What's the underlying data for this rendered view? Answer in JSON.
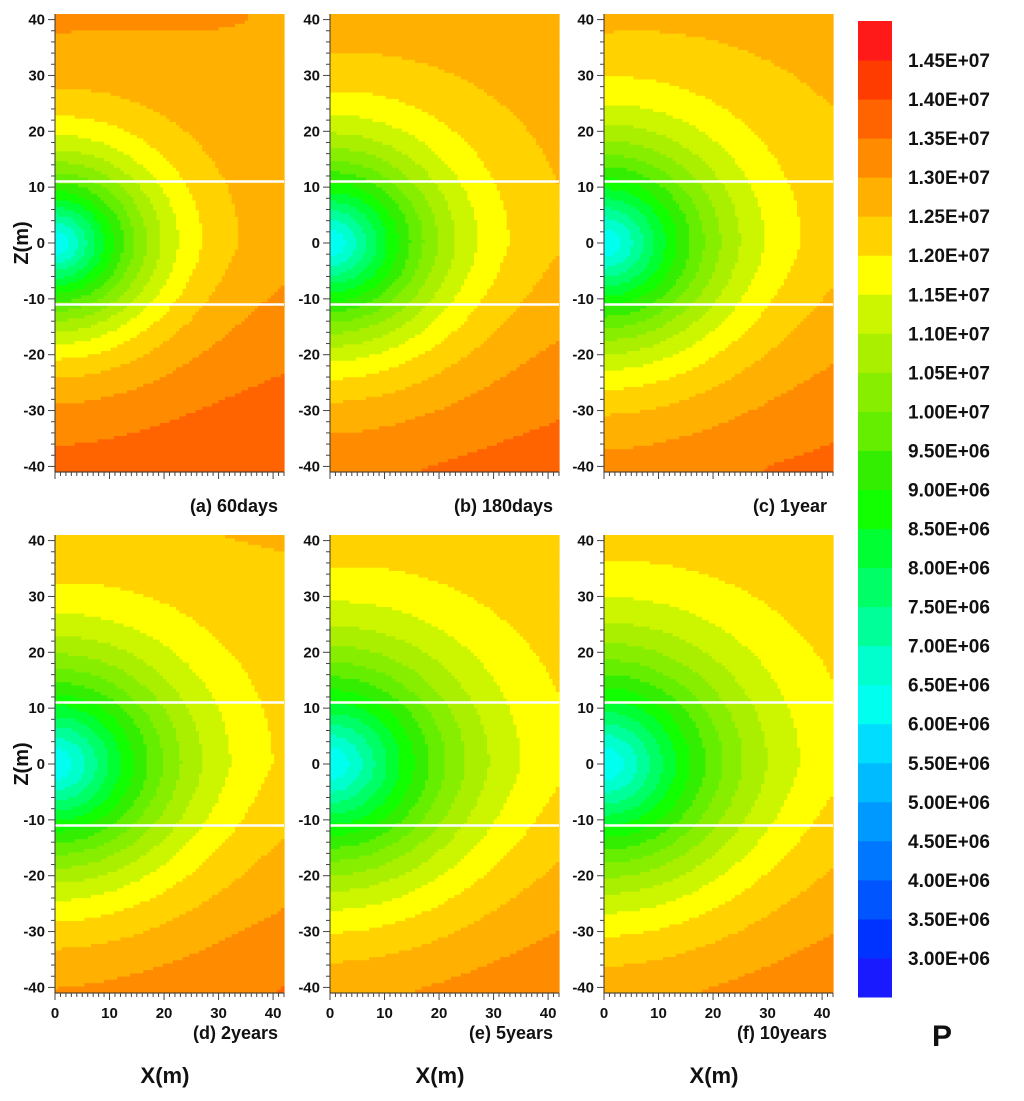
{
  "chart_data": {
    "type": "heatmap",
    "variable_label": "P",
    "xlabel": "X(m)",
    "ylabel": "Z(m)",
    "xlim": [
      0,
      42
    ],
    "ylim": [
      -41,
      41
    ],
    "x_ticks": [
      0,
      10,
      20,
      30,
      40
    ],
    "x_tick_labels": [
      "0",
      "10",
      "20",
      "30",
      "40"
    ],
    "y_ticks": [
      40,
      30,
      20,
      10,
      0,
      -10,
      -20,
      -30,
      -40
    ],
    "y_tick_labels": [
      "40",
      "30",
      "20",
      "10",
      "0",
      "-10",
      "-20",
      "-30",
      "-40"
    ],
    "layer_boundaries_z": [
      11,
      -11
    ],
    "colorbar": {
      "levels": [
        3000000,
        3500000,
        4000000,
        4500000,
        5000000,
        5500000,
        6000000,
        6500000,
        7000000,
        7500000,
        8000000,
        8500000,
        9000000,
        9500000,
        10000000,
        10500000,
        11000000,
        11500000,
        12000000,
        12500000,
        13000000,
        13500000,
        14000000,
        14500000
      ],
      "labels": [
        "3.00E+06",
        "3.50E+06",
        "4.00E+06",
        "4.50E+06",
        "5.00E+06",
        "5.50E+06",
        "6.00E+06",
        "6.50E+06",
        "7.00E+06",
        "7.50E+06",
        "8.00E+06",
        "8.50E+06",
        "9.00E+06",
        "9.50E+06",
        "1.00E+07",
        "1.05E+07",
        "1.10E+07",
        "1.15E+07",
        "1.20E+07",
        "1.25E+07",
        "1.30E+07",
        "1.35E+07",
        "1.40E+07",
        "1.45E+07"
      ],
      "colors": [
        "#1a1aff",
        "#0033ff",
        "#0055ff",
        "#0077ff",
        "#0099ff",
        "#00bbff",
        "#00ddff",
        "#00ffee",
        "#00ffcc",
        "#00ff99",
        "#00ff66",
        "#00ff33",
        "#11ff00",
        "#33ee00",
        "#66ee00",
        "#88ee00",
        "#aaee00",
        "#ccf500",
        "#ffff00",
        "#ffd200",
        "#ffb000",
        "#ff8c00",
        "#ff6400",
        "#ff3c00",
        "#ff1a1a"
      ]
    },
    "panels": [
      {
        "label": "(a) 60days",
        "far_field_top": 13200000,
        "far_field_mid": 13000000,
        "far_field_bottom": 13800000,
        "well_pressure": 6000000,
        "plume_radius": 30
      },
      {
        "label": "(b) 180days",
        "far_field_top": 13000000,
        "far_field_mid": 12800000,
        "far_field_bottom": 13600000,
        "well_pressure": 6000000,
        "plume_radius": 34
      },
      {
        "label": "(c) 1year",
        "far_field_top": 12900000,
        "far_field_mid": 12700000,
        "far_field_bottom": 13500000,
        "well_pressure": 6000000,
        "plume_radius": 36
      },
      {
        "label": "(d) 2years",
        "far_field_top": 12800000,
        "far_field_mid": 12600000,
        "far_field_bottom": 13400000,
        "well_pressure": 6000000,
        "plume_radius": 38
      },
      {
        "label": "(e) 5years",
        "far_field_top": 12700000,
        "far_field_mid": 12500000,
        "far_field_bottom": 13300000,
        "well_pressure": 6000000,
        "plume_radius": 40
      },
      {
        "label": "(f) 10years",
        "far_field_top": 12700000,
        "far_field_mid": 12500000,
        "far_field_bottom": 13300000,
        "well_pressure": 6000000,
        "plume_radius": 41
      }
    ]
  }
}
